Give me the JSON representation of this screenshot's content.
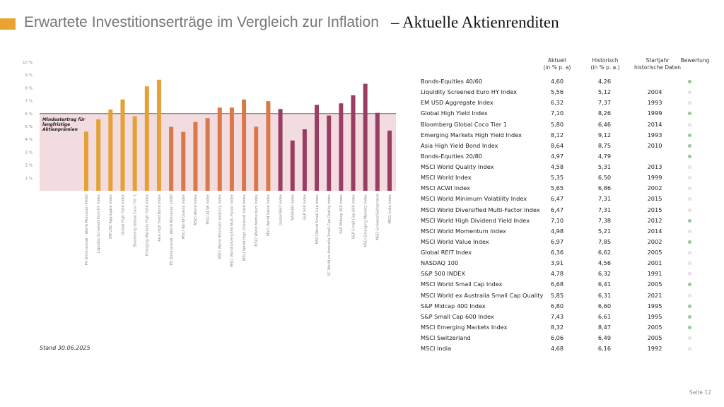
{
  "header": {
    "title": "Erwartete Investitionserträge im Vergleich zur Inflation",
    "dash": "–",
    "subtitle": "Aktuelle Aktienrenditen"
  },
  "colors": {
    "accent": "#E8A42E",
    "group1": "#E5A135",
    "group2": "#D9794A",
    "group3": "#9A3D62",
    "band": "#F2DCDF",
    "threshold": "#666666",
    "rating_high": "#9CC79A",
    "rating_mid": "#E3A935",
    "rating_low": "#8E2F4D",
    "rating_off": "#E6E6EC"
  },
  "chart_data": {
    "type": "bar",
    "ylim": [
      0,
      10
    ],
    "yticks": [
      "1 %",
      "2 %",
      "3 %",
      "4 %",
      "5 %",
      "6 %",
      "7 %",
      "8 %",
      "9 %",
      "10 %"
    ],
    "threshold": 6,
    "threshold_label": [
      "Mindestertrag für",
      "langfristige",
      "Aktienprämien"
    ],
    "categories": [
      "P4 Dimensional - World Allocation 40/60",
      "Liquidity Screened Euro HY Index",
      "EM USD Aggregate Index",
      "Global High Yield Index",
      "Bloomberg Global Coco Tier 1",
      "Emerging Markets High Yield Index",
      "Asia High Yield Bond Index",
      "P5 Dimensional - World Allocation 20/80",
      "MSCI World Quality Index",
      "MSCI World Index",
      "MSCI ACWI Index",
      "MSCI World Minimum Volatility Index",
      "MSCI World Diversified Multi-Factor Index",
      "MSCI World High Dividend Yield Index",
      "MSCI World Momentum Index",
      "MSCI World Value Index",
      "Global REIT Index",
      "NASDAQ Index",
      "S&P 500 Index",
      "MSCI World Small Cap Index",
      "SC World ex Australia Small Cap Quality Index",
      "S&P Midcap 400 Index",
      "S&P Small Cap 600 Index",
      "MSCI Emerging Markets Index",
      "MSCI Schweiz/Switzerland",
      "MSCI India Index"
    ],
    "values": [
      4.6,
      5.56,
      6.32,
      7.1,
      5.8,
      8.12,
      8.64,
      4.97,
      4.58,
      5.35,
      5.65,
      6.47,
      6.47,
      7.1,
      4.98,
      6.97,
      6.36,
      3.91,
      4.78,
      6.68,
      5.85,
      6.8,
      7.43,
      8.32,
      6.06,
      4.68
    ],
    "groups": [
      1,
      1,
      1,
      1,
      1,
      1,
      1,
      2,
      2,
      2,
      2,
      2,
      2,
      2,
      2,
      2,
      3,
      3,
      3,
      3,
      3,
      3,
      3,
      3,
      3,
      3
    ]
  },
  "table": {
    "headers": {
      "current": [
        "Aktuell",
        "(in % p. a)"
      ],
      "historic": [
        "Historisch",
        "(in % p. a.)"
      ],
      "start": [
        "Startjahr",
        "historische Daten"
      ],
      "rating": [
        "Bewertung"
      ]
    },
    "rows": [
      {
        "name": "Bonds-Equities 40/60",
        "current": "4,60",
        "historic": "4,26",
        "start": "",
        "rating": "high"
      },
      {
        "name": "Liquidity Screened Euro HY Index",
        "current": "5,56",
        "historic": "5,12",
        "start": "2004",
        "rating": "mid"
      },
      {
        "name": "EM USD Aggregate Index",
        "current": "6,32",
        "historic": "7,37",
        "start": "1993",
        "rating": "mid"
      },
      {
        "name": "Global High Yield Index",
        "current": "7,10",
        "historic": "8,26",
        "start": "1999",
        "rating": "high"
      },
      {
        "name": "Bloomberg Global Coco Tier 1",
        "current": "5,80",
        "historic": "6,46",
        "start": "2014",
        "rating": "mid"
      },
      {
        "name": "Emerging Markets High Yield Index",
        "current": "8,12",
        "historic": "9,12",
        "start": "1993",
        "rating": "high"
      },
      {
        "name": "Asia High Yield Bond Index",
        "current": "8,64",
        "historic": "8,75",
        "start": "2010",
        "rating": "high"
      },
      {
        "name": "Bonds-Equities 20/80",
        "current": "4,97",
        "historic": "4,79",
        "start": "",
        "rating": "high"
      },
      {
        "name": "MSCI World Quality Index",
        "current": "4,58",
        "historic": "5,31",
        "start": "2013",
        "rating": "low"
      },
      {
        "name": "MSCI World Index",
        "current": "5,35",
        "historic": "6,50",
        "start": "1999",
        "rating": "mid"
      },
      {
        "name": "MSCI ACWI Index",
        "current": "5,65",
        "historic": "6,86",
        "start": "2002",
        "rating": "mid"
      },
      {
        "name": "MSCI World Minimum Volatility Index",
        "current": "6,47",
        "historic": "7,31",
        "start": "2015",
        "rating": "mid"
      },
      {
        "name": "MSCI World Diversified Multi-Factor Index",
        "current": "6,47",
        "historic": "7,31",
        "start": "2015",
        "rating": "mid"
      },
      {
        "name": "MSCI World High Dividend Yield Index",
        "current": "7,10",
        "historic": "7,38",
        "start": "2012",
        "rating": "high"
      },
      {
        "name": "MSCI World Momentum Index",
        "current": "4,98",
        "historic": "5,21",
        "start": "2014",
        "rating": "mid"
      },
      {
        "name": "MSCI World Value Index",
        "current": "6,97",
        "historic": "7,85",
        "start": "2002",
        "rating": "high"
      },
      {
        "name": "Global REIT Index",
        "current": "6,36",
        "historic": "6,62",
        "start": "2005",
        "rating": "mid"
      },
      {
        "name": "NASDAQ 100",
        "current": "3,91",
        "historic": "4,56",
        "start": "2001",
        "rating": "low"
      },
      {
        "name": "S&P 500 INDEX",
        "current": "4,78",
        "historic": "6,32",
        "start": "1991",
        "rating": "low"
      },
      {
        "name": "MSCI World Small Cap Index",
        "current": "6,68",
        "historic": "6,41",
        "start": "2005",
        "rating": "high"
      },
      {
        "name": "MSCI World ex Australia Small Cap Quality",
        "current": "5,85",
        "historic": "6,31",
        "start": "2021",
        "rating": "mid"
      },
      {
        "name": "S&P Midcap 400 Index",
        "current": "6,80",
        "historic": "6,60",
        "start": "1995",
        "rating": "high"
      },
      {
        "name": "S&P Small Cap 600 Index",
        "current": "7,43",
        "historic": "6,61",
        "start": "1995",
        "rating": "high"
      },
      {
        "name": "MSCI Emerging Markets Index",
        "current": "8,32",
        "historic": "8,47",
        "start": "2005",
        "rating": "high"
      },
      {
        "name": "MSCI Switzerland",
        "current": "6,06",
        "historic": "6,49",
        "start": "2005",
        "rating": "mid"
      },
      {
        "name": "MSCI India",
        "current": "4,68",
        "historic": "6,16",
        "start": "1992",
        "rating": "low"
      }
    ]
  },
  "footer": {
    "date": "Stand 30.06.2025",
    "page": "Seite 12"
  }
}
